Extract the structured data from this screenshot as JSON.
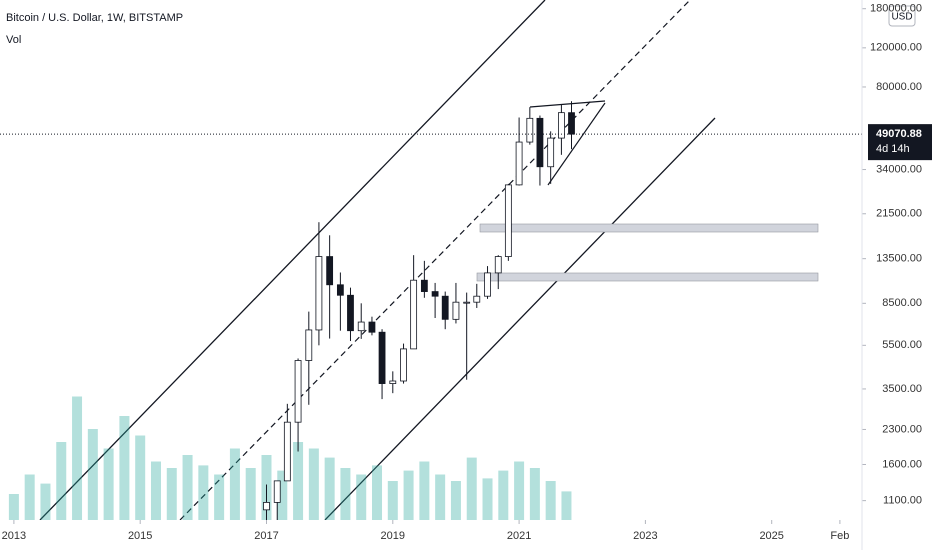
{
  "chart_data": {
    "type": "candlestick",
    "title": "Bitcoin / U.S. Dollar, 1W, BITSTAMP",
    "currency": "USD",
    "log_scale": true,
    "x": [
      2017.0,
      2017.17,
      2017.33,
      2017.5,
      2017.67,
      2017.83,
      2018.0,
      2018.17,
      2018.33,
      2018.5,
      2018.67,
      2018.83,
      2019.0,
      2019.17,
      2019.33,
      2019.5,
      2019.67,
      2019.83,
      2020.0,
      2020.17,
      2020.33,
      2020.5,
      2020.67,
      2020.83,
      2021.0,
      2021.17,
      2021.33,
      2021.5,
      2021.67,
      2021.83
    ],
    "open": [
      1000,
      1080,
      1350,
      2480,
      4700,
      6450,
      13800,
      10300,
      9240,
      6400,
      7000,
      6300,
      3700,
      3800,
      5300,
      10800,
      9600,
      9150,
      7200,
      8600,
      8600,
      9150,
      11650,
      13800,
      29000,
      45200,
      57800,
      35000,
      47100,
      61300
    ],
    "high": [
      1300,
      1350,
      3000,
      4800,
      7800,
      19700,
      17200,
      11700,
      10000,
      8500,
      7400,
      6500,
      4200,
      5600,
      14000,
      13200,
      10500,
      9600,
      10500,
      9500,
      10400,
      12500,
      14000,
      29300,
      58300,
      64900,
      59500,
      50500,
      67000,
      69000
    ],
    "low": [
      900,
      890,
      1350,
      1830,
      2970,
      5500,
      5900,
      6400,
      5750,
      5880,
      6100,
      3150,
      3350,
      3700,
      5300,
      9000,
      7300,
      6500,
      6900,
      3850,
      8100,
      8900,
      9850,
      13200,
      28800,
      44000,
      28800,
      29300,
      39600,
      42000
    ],
    "close": [
      1080,
      1350,
      2480,
      4700,
      6450,
      13800,
      10300,
      9240,
      6400,
      7000,
      6300,
      3700,
      3800,
      5300,
      10800,
      9600,
      9150,
      7200,
      8600,
      8600,
      9150,
      11650,
      13800,
      29000,
      45200,
      57800,
      35000,
      47100,
      61300,
      49070
    ],
    "up_color": "#ffffff",
    "down_color": "#131722",
    "volume": {
      "name": "Vol",
      "color": "rgba(38,166,154,0.35)",
      "x": [
        2013.0,
        2013.25,
        2013.5,
        2013.75,
        2014.0,
        2014.25,
        2014.5,
        2014.75,
        2015.0,
        2015.25,
        2015.5,
        2015.75,
        2016.0,
        2016.25,
        2016.5,
        2016.75,
        2017.0,
        2017.25,
        2017.5,
        2017.75,
        2018.0,
        2018.25,
        2018.5,
        2018.75,
        2019.0,
        2019.25,
        2019.5,
        2019.75,
        2020.0,
        2020.25,
        2020.5,
        2020.75,
        2021.0,
        2021.25,
        2021.5,
        2021.75
      ],
      "values": [
        20,
        35,
        28,
        60,
        95,
        70,
        55,
        80,
        65,
        45,
        40,
        50,
        42,
        35,
        55,
        40,
        50,
        38,
        60,
        55,
        48,
        40,
        35,
        42,
        30,
        38,
        45,
        35,
        30,
        48,
        32,
        38,
        45,
        40,
        30,
        22
      ],
      "ylim": [
        0,
        100
      ]
    },
    "xlim": [
      2012.78,
      2026.43
    ],
    "ylim": [
      900,
      197000
    ],
    "xticks": [
      2013,
      2015,
      2017,
      2019,
      2021,
      2023,
      2025,
      {
        "value": 2026.08,
        "label": "Feb"
      }
    ],
    "yticks": [
      {
        "value": 180000,
        "label": "180000.00"
      },
      {
        "value": 120000,
        "label": "120000.00"
      },
      {
        "value": 80000,
        "label": "80000.00"
      },
      {
        "value": 34000,
        "label": "34000.00"
      },
      {
        "value": 21500,
        "label": "21500.00"
      },
      {
        "value": 13500,
        "label": "13500.00"
      },
      {
        "value": 8500,
        "label": "8500.00"
      },
      {
        "value": 5500,
        "label": "5500.00"
      },
      {
        "value": 3500,
        "label": "3500.00"
      },
      {
        "value": 2300,
        "label": "2300.00"
      },
      {
        "value": 1600,
        "label": "1600.00"
      },
      {
        "value": 1100,
        "label": "1100.00"
      }
    ],
    "last_price": {
      "value": 49070.88,
      "label": "49070.88",
      "countdown": "4d 14h"
    }
  }
}
